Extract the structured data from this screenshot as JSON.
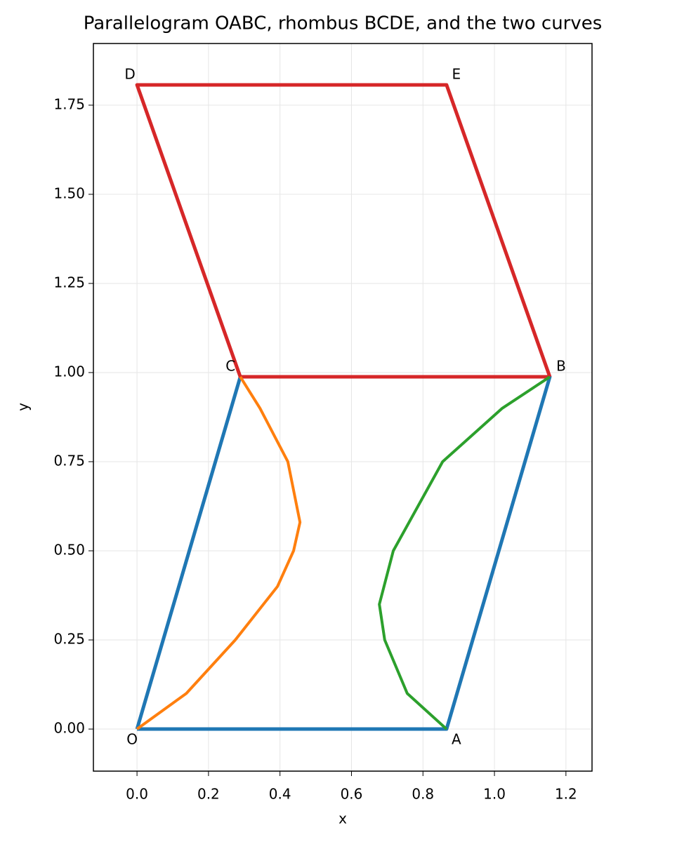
{
  "chart_data": {
    "type": "line",
    "title": "Parallelogram OABC, rhombus BCDE, and the two curves",
    "x_label": "x",
    "y_label": "y",
    "xlim": [
      -0.122,
      1.273
    ],
    "ylim": [
      -0.118,
      1.923
    ],
    "xticks": [
      {
        "value": 0,
        "label": "0.0"
      },
      {
        "value": 0.2,
        "label": "0.2"
      },
      {
        "value": 0.4,
        "label": "0.4"
      },
      {
        "value": 0.6,
        "label": "0.6"
      },
      {
        "value": 0.8,
        "label": "0.8"
      },
      {
        "value": 1,
        "label": "1.0"
      },
      {
        "value": 1.2,
        "label": "1.2"
      }
    ],
    "yticks": [
      {
        "value": 0,
        "label": "0.00"
      },
      {
        "value": 0.25,
        "label": "0.25"
      },
      {
        "value": 0.5,
        "label": "0.50"
      },
      {
        "value": 0.75,
        "label": "0.75"
      },
      {
        "value": 1,
        "label": "1.00"
      },
      {
        "value": 1.25,
        "label": "1.25"
      },
      {
        "value": 1.5,
        "label": "1.50"
      },
      {
        "value": 1.75,
        "label": "1.75"
      }
    ],
    "grid": true,
    "series": [
      {
        "color": "#1f77b4",
        "x": [
          0,
          0.866,
          1.155,
          0.289,
          0
        ],
        "values": [
          0,
          0,
          0.988,
          0.988,
          0
        ]
      },
      {
        "color": "#d62728",
        "x": [
          1.155,
          0.289,
          0,
          0.866,
          1.155
        ],
        "values": [
          0.988,
          0.988,
          1.807,
          1.807,
          0.988
        ]
      },
      {
        "color": "#ff7f0e",
        "x": [
          0,
          0.138,
          0.275,
          0.393,
          0.438,
          0.456,
          0.422,
          0.344,
          0.289
        ],
        "values": [
          0,
          0.1,
          0.25,
          0.4,
          0.5,
          0.58,
          0.75,
          0.9,
          0.988
        ]
      },
      {
        "color": "#2ca02c",
        "x": [
          0.866,
          0.756,
          0.693,
          0.678,
          0.717,
          0.855,
          1.022,
          1.155
        ],
        "values": [
          0,
          0.1,
          0.25,
          0.35,
          0.5,
          0.75,
          0.9,
          0.988
        ]
      }
    ],
    "points": [
      {
        "label": "O",
        "x": 0,
        "y": 0
      },
      {
        "label": "A",
        "x": 0.866,
        "y": 0
      },
      {
        "label": "B",
        "x": 1.155,
        "y": 0.988
      },
      {
        "label": "C",
        "x": 0.289,
        "y": 0.988
      },
      {
        "label": "D",
        "x": 0,
        "y": 1.807
      },
      {
        "label": "E",
        "x": 0.866,
        "y": 1.807
      }
    ]
  }
}
